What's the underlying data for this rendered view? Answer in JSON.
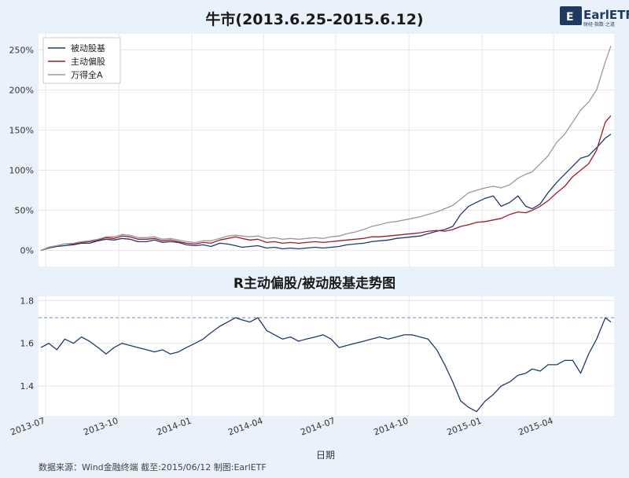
{
  "brand": {
    "name": "EarlETF",
    "tagline": "财经·指数·之道"
  },
  "footer": {
    "source": "数据来源：Wind金融终端 截至:2015/06/12 制图:EarlETF",
    "xlabel": "日期"
  },
  "colors": {
    "passive": "#1f3a6e",
    "active": "#9e1b2a",
    "wind": "#9a9a9a",
    "ratio": "#1f3a6e",
    "refline": "#6a8fc0",
    "grid": "#e6e6e6",
    "plot_bg": "#ffffff",
    "page_bg": "#e9f1fb"
  },
  "chart_data": [
    {
      "type": "line",
      "title": "牛市(2013.6.25-2015.6.12)",
      "x": [
        "2013-06-25",
        "2013-07-05",
        "2013-07-15",
        "2013-07-25",
        "2013-08-05",
        "2013-08-15",
        "2013-08-25",
        "2013-09-05",
        "2013-09-15",
        "2013-09-25",
        "2013-10-05",
        "2013-10-15",
        "2013-10-25",
        "2013-11-05",
        "2013-11-15",
        "2013-11-25",
        "2013-12-05",
        "2013-12-15",
        "2013-12-25",
        "2014-01-05",
        "2014-01-15",
        "2014-01-25",
        "2014-02-05",
        "2014-02-15",
        "2014-02-25",
        "2014-03-05",
        "2014-03-15",
        "2014-03-25",
        "2014-04-05",
        "2014-04-15",
        "2014-04-25",
        "2014-05-05",
        "2014-05-15",
        "2014-05-25",
        "2014-06-05",
        "2014-06-15",
        "2014-06-25",
        "2014-07-05",
        "2014-07-15",
        "2014-07-25",
        "2014-08-05",
        "2014-08-15",
        "2014-08-25",
        "2014-09-05",
        "2014-09-15",
        "2014-09-25",
        "2014-10-05",
        "2014-10-15",
        "2014-10-25",
        "2014-11-05",
        "2014-11-15",
        "2014-11-25",
        "2014-12-05",
        "2014-12-15",
        "2014-12-25",
        "2015-01-05",
        "2015-01-15",
        "2015-01-25",
        "2015-02-05",
        "2015-02-15",
        "2015-02-25",
        "2015-03-05",
        "2015-03-15",
        "2015-03-25",
        "2015-04-05",
        "2015-04-15",
        "2015-04-25",
        "2015-05-05",
        "2015-05-15",
        "2015-05-25",
        "2015-06-05",
        "2015-06-12"
      ],
      "series": [
        {
          "name": "被动股基",
          "values": [
            0,
            3,
            5,
            6,
            7,
            9,
            9,
            12,
            14,
            13,
            15,
            14,
            11,
            11,
            13,
            10,
            11,
            10,
            7,
            6,
            7,
            5,
            9,
            8,
            6,
            4,
            5,
            6,
            3,
            4,
            2,
            3,
            2,
            3,
            4,
            3,
            4,
            5,
            7,
            8,
            9,
            11,
            12,
            13,
            15,
            16,
            17,
            18,
            21,
            24,
            26,
            30,
            45,
            55,
            60,
            65,
            68,
            55,
            60,
            68,
            55,
            52,
            58,
            72,
            85,
            95,
            105,
            115,
            118,
            128,
            140,
            145
          ]
        },
        {
          "name": "主动偏股",
          "values": [
            0,
            4,
            6,
            8,
            8,
            10,
            11,
            13,
            16,
            15,
            18,
            17,
            14,
            14,
            15,
            12,
            13,
            11,
            9,
            8,
            10,
            9,
            13,
            15,
            17,
            15,
            13,
            14,
            10,
            11,
            9,
            10,
            9,
            10,
            11,
            10,
            11,
            12,
            13,
            14,
            15,
            17,
            17,
            18,
            19,
            20,
            21,
            22,
            24,
            25,
            24,
            26,
            30,
            32,
            35,
            36,
            38,
            40,
            45,
            48,
            47,
            50,
            55,
            62,
            72,
            80,
            92,
            100,
            108,
            125,
            160,
            168
          ]
        },
        {
          "name": "万得全A",
          "values": [
            0,
            4,
            6,
            8,
            9,
            11,
            12,
            14,
            17,
            17,
            20,
            19,
            16,
            16,
            17,
            14,
            15,
            13,
            11,
            10,
            12,
            12,
            15,
            18,
            19,
            18,
            17,
            18,
            15,
            16,
            14,
            15,
            14,
            15,
            16,
            15,
            17,
            18,
            21,
            23,
            26,
            30,
            32,
            35,
            36,
            38,
            40,
            42,
            45,
            48,
            52,
            56,
            64,
            72,
            75,
            78,
            80,
            78,
            82,
            90,
            95,
            98,
            108,
            118,
            135,
            145,
            160,
            175,
            185,
            200,
            235,
            255
          ]
        }
      ],
      "ylim": [
        -20,
        270
      ],
      "yticks": [
        0,
        50,
        100,
        150,
        200,
        250
      ],
      "ytick_labels": [
        "0%",
        "50%",
        "100%",
        "150%",
        "200%",
        "250%"
      ],
      "legend_position": "upper-left",
      "grid": true
    },
    {
      "type": "line",
      "title": "R主动偏股/被动股基走势图",
      "x": [
        "2013-06-25",
        "2013-07-05",
        "2013-07-15",
        "2013-07-25",
        "2013-08-05",
        "2013-08-15",
        "2013-08-25",
        "2013-09-05",
        "2013-09-15",
        "2013-09-25",
        "2013-10-05",
        "2013-10-15",
        "2013-10-25",
        "2013-11-05",
        "2013-11-15",
        "2013-11-25",
        "2013-12-05",
        "2013-12-15",
        "2013-12-25",
        "2014-01-05",
        "2014-01-15",
        "2014-01-25",
        "2014-02-05",
        "2014-02-15",
        "2014-02-25",
        "2014-03-05",
        "2014-03-15",
        "2014-03-25",
        "2014-04-05",
        "2014-04-15",
        "2014-04-25",
        "2014-05-05",
        "2014-05-15",
        "2014-05-25",
        "2014-06-05",
        "2014-06-15",
        "2014-06-25",
        "2014-07-05",
        "2014-07-15",
        "2014-07-25",
        "2014-08-05",
        "2014-08-15",
        "2014-08-25",
        "2014-09-05",
        "2014-09-15",
        "2014-09-25",
        "2014-10-05",
        "2014-10-15",
        "2014-10-25",
        "2014-11-05",
        "2014-11-15",
        "2014-11-25",
        "2014-12-05",
        "2014-12-15",
        "2014-12-25",
        "2015-01-05",
        "2015-01-15",
        "2015-01-25",
        "2015-02-05",
        "2015-02-15",
        "2015-02-25",
        "2015-03-05",
        "2015-03-15",
        "2015-03-25",
        "2015-04-05",
        "2015-04-15",
        "2015-04-25",
        "2015-05-05",
        "2015-05-15",
        "2015-05-25",
        "2015-06-05",
        "2015-06-12"
      ],
      "series": [
        {
          "name": "",
          "values": [
            1.58,
            1.6,
            1.57,
            1.62,
            1.6,
            1.63,
            1.61,
            1.58,
            1.55,
            1.58,
            1.6,
            1.59,
            1.58,
            1.57,
            1.56,
            1.57,
            1.55,
            1.56,
            1.58,
            1.6,
            1.62,
            1.65,
            1.68,
            1.7,
            1.72,
            1.71,
            1.7,
            1.72,
            1.66,
            1.64,
            1.62,
            1.63,
            1.61,
            1.62,
            1.63,
            1.64,
            1.62,
            1.58,
            1.59,
            1.6,
            1.61,
            1.62,
            1.63,
            1.62,
            1.63,
            1.64,
            1.64,
            1.63,
            1.62,
            1.57,
            1.5,
            1.42,
            1.33,
            1.3,
            1.28,
            1.33,
            1.36,
            1.4,
            1.42,
            1.45,
            1.46,
            1.48,
            1.47,
            1.5,
            1.5,
            1.52,
            1.52,
            1.46,
            1.55,
            1.62,
            1.72,
            1.7
          ]
        }
      ],
      "reference_line": 1.72,
      "ylim": [
        1.26,
        1.82
      ],
      "yticks": [
        1.4,
        1.6,
        1.8
      ],
      "ytick_labels": [
        "1.4",
        "1.6",
        "1.8"
      ],
      "xticks": [
        "2013-07",
        "2013-10",
        "2014-01",
        "2014-04",
        "2014-07",
        "2014-10",
        "2015-01",
        "2015-04"
      ],
      "xtick_labels": [
        "2013-07",
        "2013-10",
        "2014-01",
        "2014-04",
        "2014-07",
        "2014-10",
        "2015-01",
        "2015-04"
      ],
      "grid": true
    }
  ]
}
